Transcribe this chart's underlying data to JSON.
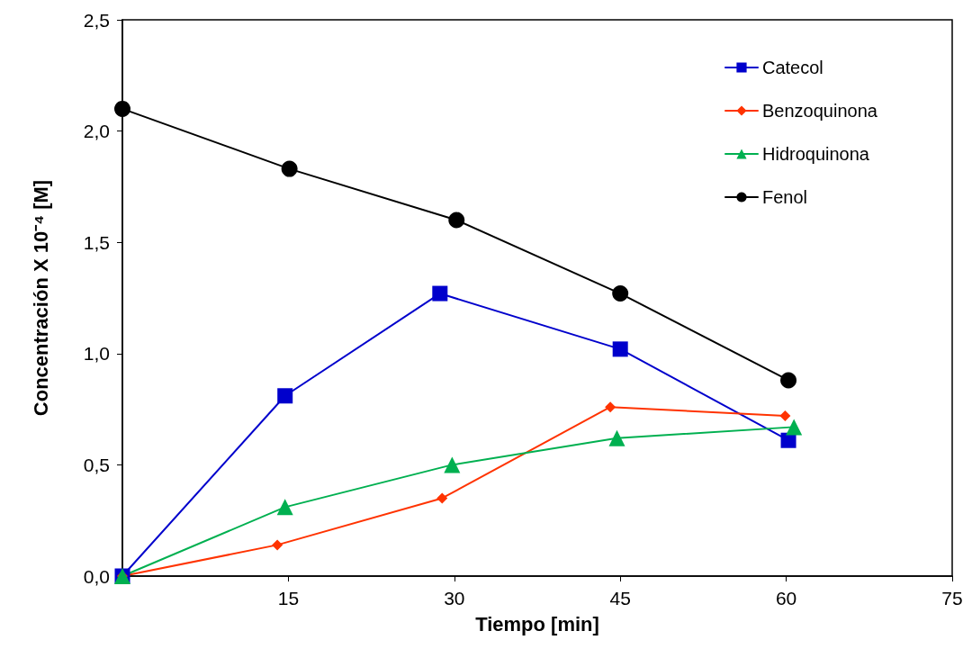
{
  "chart_data": {
    "type": "line",
    "xlabel": "Tiempo [min]",
    "ylabel": "Concentración X 10⁻⁴ [M]",
    "xlim": [
      0,
      75
    ],
    "xticks": [
      15,
      30,
      45,
      60,
      75
    ],
    "ylim": [
      0,
      2.5
    ],
    "yticks": [
      {
        "value": 0,
        "label": "0,0"
      },
      {
        "value": 0.5,
        "label": "0,5"
      },
      {
        "value": 1,
        "label": "1,0"
      },
      {
        "value": 1.5,
        "label": "1,5"
      },
      {
        "value": 2,
        "label": "2,0"
      },
      {
        "value": 2.5,
        "label": "2,5"
      }
    ],
    "grid": false,
    "legend": "top right",
    "line_style": "solid",
    "series": [
      {
        "name": "Catecol",
        "color": "#0000cc",
        "marker": "square",
        "x": [
          0,
          14.7,
          28.7,
          45,
          60.2
        ],
        "values": [
          0,
          0.81,
          1.27,
          1.02,
          0.61
        ]
      },
      {
        "name": "Benzoquinona",
        "color": "#ff3300",
        "marker": "diamond",
        "x": [
          0,
          14,
          28.9,
          44.1,
          59.9
        ],
        "values": [
          0,
          0.14,
          0.35,
          0.76,
          0.72
        ]
      },
      {
        "name": "Hidroquinona",
        "color": "#00b050",
        "marker": "triangle",
        "x": [
          0,
          14.7,
          29.8,
          44.7,
          60.7
        ],
        "values": [
          0,
          0.31,
          0.5,
          0.62,
          0.67
        ]
      },
      {
        "name": "Fenol",
        "color": "#000000",
        "marker": "circle",
        "x": [
          0,
          15.1,
          30.2,
          45,
          60.2
        ],
        "values": [
          2.1,
          1.83,
          1.6,
          1.27,
          0.88
        ]
      }
    ]
  }
}
